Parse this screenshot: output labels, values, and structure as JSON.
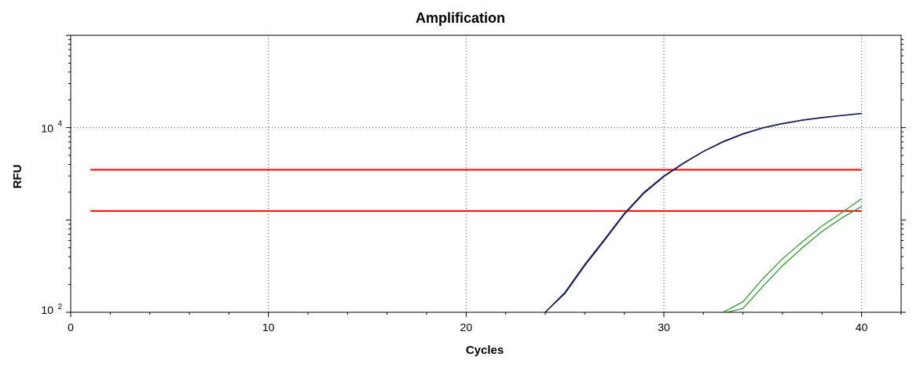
{
  "chart_data": {
    "type": "line",
    "title": "Amplification",
    "xlabel": "Cycles",
    "ylabel": "RFU",
    "xlim": [
      0,
      42
    ],
    "ylim": [
      100,
      100000
    ],
    "yscale": "log",
    "grid": true,
    "x_ticks": [
      {
        "value": 0,
        "label": "0"
      },
      {
        "value": 10,
        "label": "10"
      },
      {
        "value": 20,
        "label": "20"
      },
      {
        "value": 30,
        "label": "30"
      },
      {
        "value": 40,
        "label": "40"
      }
    ],
    "y_ticks": [
      {
        "value": 100,
        "base": "10",
        "exp": "2"
      },
      {
        "value": 10000,
        "base": "10",
        "exp": "4"
      }
    ],
    "colors": {
      "navy": "#1a1a55",
      "green": "#2e9a2e",
      "threshold": "#ff0000",
      "grid": "#444444"
    },
    "thresholds": [
      {
        "y": 3500,
        "x": [
          1,
          40
        ]
      },
      {
        "y": 1250,
        "x": [
          1,
          40
        ]
      }
    ],
    "series": [
      {
        "color": "navy",
        "x": [
          24,
          25,
          26,
          27,
          28,
          29,
          30,
          31,
          32,
          33,
          34,
          35,
          36,
          37,
          38,
          39,
          40
        ],
        "values": [
          100,
          160,
          320,
          600,
          1150,
          1950,
          2950,
          4100,
          5500,
          7000,
          8500,
          9900,
          11000,
          12000,
          12800,
          13500,
          14200
        ]
      },
      {
        "color": "navy",
        "x": [
          24,
          25,
          26,
          27,
          28,
          29,
          30,
          31,
          32,
          33,
          34,
          35,
          36,
          37,
          38,
          39,
          40
        ],
        "values": [
          100,
          165,
          330,
          620,
          1180,
          2000,
          3000,
          4150,
          5550,
          7100,
          8600,
          10000,
          11100,
          12100,
          12900,
          13600,
          14300
        ]
      },
      {
        "color": "green",
        "x": [
          33,
          34,
          35,
          36,
          37,
          38,
          39,
          40
        ],
        "values": [
          100,
          130,
          230,
          380,
          580,
          860,
          1200,
          1700
        ]
      },
      {
        "color": "green",
        "x": [
          33.2,
          34,
          35,
          36,
          37,
          38,
          39,
          40
        ],
        "values": [
          100,
          110,
          190,
          320,
          500,
          750,
          1050,
          1400
        ]
      }
    ]
  }
}
